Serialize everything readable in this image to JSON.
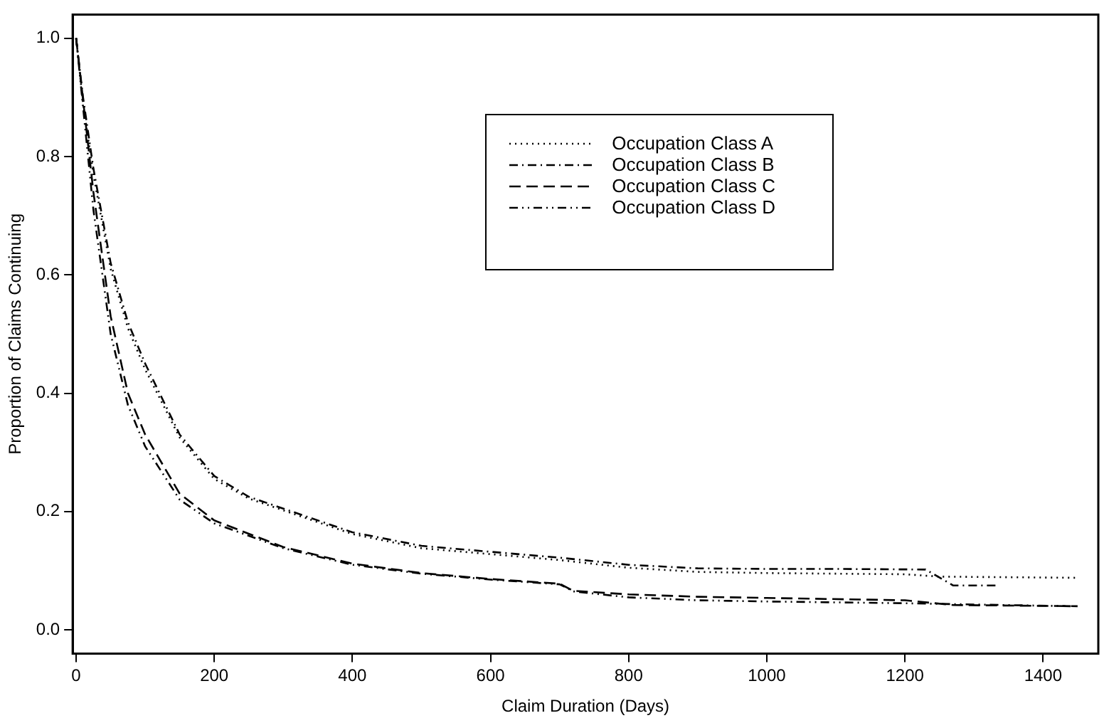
{
  "chart_data": {
    "type": "line",
    "xlabel": "Claim Duration (Days)",
    "ylabel": "Proportion of Claims Continuing",
    "xlim": [
      -5,
      1480
    ],
    "xticks": [
      0,
      200,
      400,
      600,
      800,
      1000,
      1200,
      1400
    ],
    "ylim": [
      -0.04,
      1.04
    ],
    "yticks": [
      {
        "value": 0,
        "label": "0.0"
      },
      {
        "value": 0.2,
        "label": "0.2"
      },
      {
        "value": 0.4,
        "label": "0.4"
      },
      {
        "value": 0.6,
        "label": "0.6"
      },
      {
        "value": 0.8,
        "label": "0.8"
      },
      {
        "value": 1,
        "label": "1.0"
      }
    ],
    "grid": false,
    "legend": "top right",
    "marker": "none",
    "series": [
      {
        "name": "Occupation Class A",
        "color": "#000000",
        "line_style": "dotted",
        "x": [
          0,
          10,
          25,
          50,
          75,
          100,
          150,
          200,
          250,
          300,
          400,
          500,
          600,
          700,
          800,
          900,
          1000,
          1100,
          1200,
          1250,
          1450
        ],
        "values": [
          1.0,
          0.89,
          0.77,
          0.61,
          0.51,
          0.44,
          0.325,
          0.255,
          0.222,
          0.202,
          0.162,
          0.138,
          0.128,
          0.118,
          0.105,
          0.098,
          0.096,
          0.095,
          0.094,
          0.09,
          0.088
        ]
      },
      {
        "name": "Occupation Class B",
        "color": "#000000",
        "line_style": "dashdot",
        "x": [
          0,
          10,
          25,
          50,
          75,
          100,
          150,
          200,
          250,
          300,
          400,
          500,
          600,
          700,
          800,
          900,
          1000,
          1100,
          1230,
          1270,
          1335
        ],
        "values": [
          1.0,
          0.9,
          0.78,
          0.62,
          0.52,
          0.45,
          0.33,
          0.26,
          0.225,
          0.205,
          0.165,
          0.142,
          0.132,
          0.122,
          0.11,
          0.104,
          0.103,
          0.103,
          0.102,
          0.075,
          0.075
        ]
      },
      {
        "name": "Occupation Class C",
        "color": "#000000",
        "line_style": "dashed",
        "x": [
          0,
          25,
          50,
          75,
          100,
          150,
          200,
          300,
          400,
          500,
          600,
          700,
          720,
          800,
          900,
          1000,
          1200,
          1270,
          1450
        ],
        "values": [
          1.0,
          0.74,
          0.53,
          0.4,
          0.33,
          0.23,
          0.185,
          0.14,
          0.112,
          0.096,
          0.086,
          0.078,
          0.066,
          0.06,
          0.056,
          0.054,
          0.05,
          0.042,
          0.04
        ]
      },
      {
        "name": "Occupation Class D",
        "color": "#000000",
        "line_style": "dashdotdot",
        "x": [
          0,
          25,
          50,
          75,
          100,
          150,
          200,
          300,
          400,
          500,
          600,
          700,
          720,
          800,
          900,
          1000,
          1200,
          1440
        ],
        "values": [
          1.0,
          0.71,
          0.5,
          0.38,
          0.31,
          0.22,
          0.18,
          0.138,
          0.11,
          0.095,
          0.085,
          0.077,
          0.065,
          0.055,
          0.05,
          0.048,
          0.045,
          0.04
        ]
      }
    ]
  }
}
